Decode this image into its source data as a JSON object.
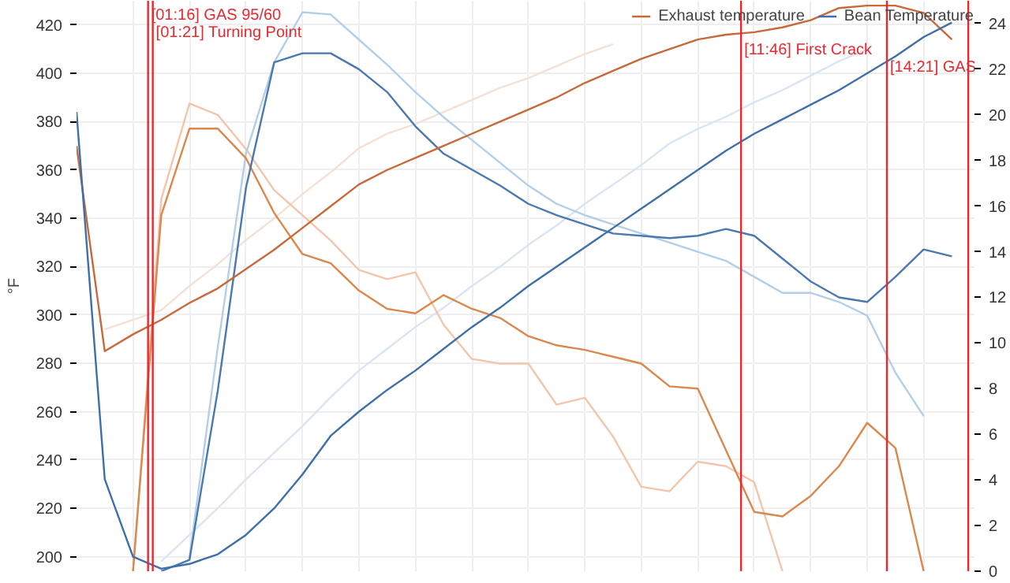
{
  "chart_data": {
    "type": "line",
    "ylabel": "°F",
    "categories": [
      null,
      null,
      null,
      null,
      null,
      null,
      null,
      null,
      null,
      null,
      null,
      null,
      null,
      null,
      null,
      null,
      null,
      null,
      null,
      null,
      null,
      null,
      null,
      null,
      null,
      null,
      null,
      null,
      null,
      null,
      null,
      null
    ],
    "ylim": [
      194,
      430
    ],
    "y2lim": [
      0,
      25
    ],
    "yticks": [
      200,
      220,
      240,
      260,
      280,
      300,
      320,
      340,
      360,
      380,
      400,
      420
    ],
    "y2ticks": [
      0,
      2,
      4,
      6,
      8,
      10,
      12,
      14,
      16,
      18,
      20,
      22,
      24
    ],
    "tick_labels": "y",
    "grid": true,
    "legend": "top right",
    "series": [
      {
        "color": "#f3e1d4",
        "values": [
          null,
          294,
          298,
          302,
          312,
          321,
          331,
          340,
          350,
          359,
          369,
          375,
          379,
          384,
          389,
          394,
          398,
          403,
          408,
          412,
          null,
          null,
          null,
          null,
          null,
          null,
          null,
          null,
          null,
          null,
          null,
          null
        ]
      },
      {
        "color": "#d9e5f0",
        "values": [
          null,
          null,
          null,
          198,
          209,
          220,
          232,
          243,
          254,
          266,
          277,
          286,
          295,
          303,
          312,
          320,
          329,
          337,
          346,
          354,
          362,
          371,
          377,
          382,
          388,
          393,
          399,
          405,
          410,
          null,
          null,
          null
        ]
      },
      {
        "color": "#f2c6ab",
        "axis": "y2",
        "values": [
          null,
          null,
          0,
          16.3,
          20.5,
          20.0,
          18.5,
          16.7,
          15.6,
          14.5,
          13.2,
          12.8,
          13.1,
          10.8,
          9.3,
          9.1,
          9.1,
          7.3,
          7.6,
          5.9,
          3.7,
          3.5,
          4.8,
          4.6,
          3.9,
          0,
          null,
          null,
          null,
          null,
          null,
          null
        ]
      },
      {
        "color": "#b3cfe8",
        "axis": "y2",
        "values": [
          null,
          null,
          null,
          null,
          0.6,
          9.8,
          18.3,
          22.3,
          24.5,
          24.4,
          23.3,
          22.2,
          21.0,
          19.9,
          18.9,
          17.9,
          16.9,
          16.1,
          15.6,
          15.2,
          14.8,
          14.4,
          14.0,
          13.6,
          12.9,
          12.2,
          12.2,
          11.8,
          11.2,
          8.7,
          6.8,
          null
        ]
      },
      {
        "color": "#d9884e",
        "axis": "y2",
        "values": [
          null,
          null,
          0,
          15.6,
          19.4,
          19.4,
          18.1,
          15.7,
          13.9,
          13.5,
          12.3,
          11.5,
          11.3,
          12.1,
          11.5,
          11.1,
          10.3,
          9.9,
          9.7,
          9.4,
          9.1,
          8.1,
          8.0,
          5.3,
          2.6,
          2.4,
          3.3,
          4.6,
          6.5,
          5.4,
          0,
          null
        ]
      },
      {
        "color": "#4a78b0",
        "axis": "y2",
        "values": [
          null,
          null,
          null,
          0,
          0.5,
          7.9,
          16.8,
          22.3,
          22.7,
          22.7,
          22.0,
          21.0,
          19.5,
          18.3,
          17.6,
          16.9,
          16.1,
          15.6,
          15.2,
          14.8,
          14.7,
          14.6,
          14.7,
          15.0,
          14.7,
          13.7,
          12.7,
          12.0,
          11.8,
          12.9,
          14.1,
          13.8
        ]
      },
      {
        "name": "Exhaust temperature",
        "color": "#c8693a",
        "values": [
          370,
          285,
          292,
          298,
          305,
          311,
          319,
          327,
          336,
          345,
          354,
          360,
          365,
          370,
          375,
          380,
          385,
          390,
          396,
          401,
          406,
          410,
          414,
          416,
          417,
          419,
          422,
          427,
          428,
          428,
          425,
          414
        ]
      },
      {
        "name": "Bean Temperature",
        "color": "#3f6fa8",
        "values": [
          384,
          232,
          200,
          195,
          197,
          201,
          209,
          220,
          234,
          250,
          260,
          269,
          277,
          286,
          295,
          303,
          312,
          320,
          328,
          336,
          344,
          352,
          360,
          368,
          375,
          381,
          387,
          393,
          400,
          407,
          415,
          421
        ]
      }
    ],
    "annotations": [
      "[01:16] GAS 95/60",
      "[01:21] Turning Point",
      "[11:46] First Crack",
      "[14:21] GAS"
    ]
  }
}
